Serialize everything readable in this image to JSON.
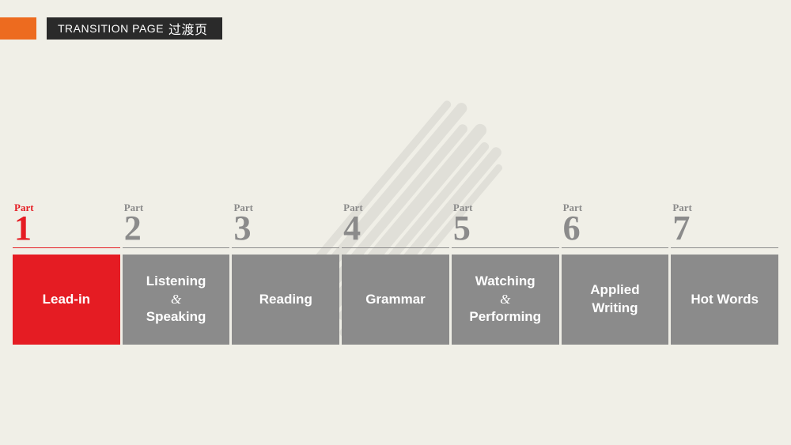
{
  "header": {
    "title_en": "TRANSITION PAGE",
    "title_cn": "过渡页"
  },
  "colors": {
    "accent_orange": "#ed6b1f",
    "header_bg": "#2a2a2a",
    "page_bg": "#f0efe7",
    "active": "#e51c23",
    "inactive": "#8b8b8b",
    "box_text": "#ffffff"
  },
  "parts": [
    {
      "label": "Part",
      "num": "1",
      "title": "Lead-in",
      "active": true
    },
    {
      "label": "Part",
      "num": "2",
      "title": "Listening\n&\nSpeaking",
      "active": false
    },
    {
      "label": "Part",
      "num": "3",
      "title": "Reading",
      "active": false
    },
    {
      "label": "Part",
      "num": "4",
      "title": "Grammar",
      "active": false
    },
    {
      "label": "Part",
      "num": "5",
      "title": "Watching\n&\nPerforming",
      "active": false
    },
    {
      "label": "Part",
      "num": "6",
      "title": "Applied\nWriting",
      "active": false
    },
    {
      "label": "Part",
      "num": "7",
      "title": "Hot Words",
      "active": false
    }
  ]
}
